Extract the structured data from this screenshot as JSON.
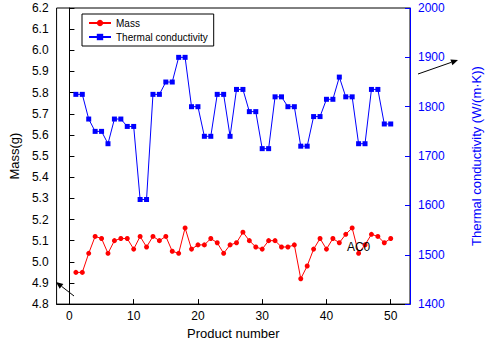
{
  "chart_data": {
    "type": "line",
    "x_label": "Product number",
    "y_label": "Mass(g)",
    "y2_label": "Thermal conductivity (W/(m·K))",
    "x": [
      1,
      2,
      3,
      4,
      5,
      6,
      7,
      8,
      9,
      10,
      11,
      12,
      13,
      14,
      15,
      16,
      17,
      18,
      19,
      20,
      21,
      22,
      23,
      24,
      25,
      26,
      27,
      28,
      29,
      30,
      31,
      32,
      33,
      34,
      35,
      36,
      37,
      38,
      39,
      40,
      41,
      42,
      43,
      44,
      45,
      46,
      47,
      48,
      49,
      50
    ],
    "series": [
      {
        "name": "Mass",
        "color": "#ff0000",
        "marker": "circle",
        "line_style": "solid",
        "values": [
          4.95,
          4.95,
          5.04,
          5.12,
          5.11,
          5.04,
          5.1,
          5.11,
          5.11,
          5.06,
          5.12,
          5.07,
          5.12,
          5.1,
          5.12,
          5.05,
          5.04,
          5.16,
          5.06,
          5.08,
          5.08,
          5.11,
          5.09,
          5.04,
          5.08,
          5.09,
          5.14,
          5.1,
          5.07,
          5.06,
          5.1,
          5.1,
          5.07,
          5.07,
          5.08,
          4.92,
          4.98,
          5.06,
          5.11,
          5.06,
          5.11,
          5.09,
          5.13,
          5.16,
          5.04,
          5.08,
          5.13,
          5.12,
          5.09,
          5.11
        ]
      },
      {
        "name": "Thermal conductivity",
        "color": "#0000ff",
        "marker": "square",
        "line_style": "solid",
        "axis": "y2",
        "values": [
          1825,
          1825,
          1775,
          1750,
          1750,
          1725,
          1775,
          1775,
          1760,
          1760,
          1612,
          1612,
          1825,
          1825,
          1850,
          1850,
          1900,
          1900,
          1800,
          1800,
          1740,
          1740,
          1825,
          1825,
          1740,
          1835,
          1835,
          1790,
          1790,
          1715,
          1715,
          1820,
          1820,
          1800,
          1800,
          1720,
          1720,
          1780,
          1780,
          1815,
          1815,
          1860,
          1820,
          1820,
          1725,
          1725,
          1835,
          1835,
          1765,
          1765
        ]
      }
    ],
    "xlim": [
      -2,
      53
    ],
    "xticks": [
      0,
      10,
      20,
      30,
      40,
      50
    ],
    "ylim": [
      4.8,
      6.2
    ],
    "yticks": [
      4.8,
      4.9,
      {
        "value": 5,
        "label": "5.0"
      },
      5.1,
      5.2,
      5.3,
      5.4,
      5.5,
      5.6,
      5.7,
      5.8,
      5.9,
      {
        "value": 6,
        "label": "6.0"
      },
      6.1,
      6.2
    ],
    "y2lim": [
      1400,
      2000
    ],
    "y2ticks": [
      1400,
      1500,
      1600,
      1700,
      1800,
      1900,
      2000
    ],
    "annotations": [
      {
        "text": "AC0",
        "x": 45,
        "y": 5.07
      }
    ],
    "legend": "upper left",
    "grid": false
  }
}
